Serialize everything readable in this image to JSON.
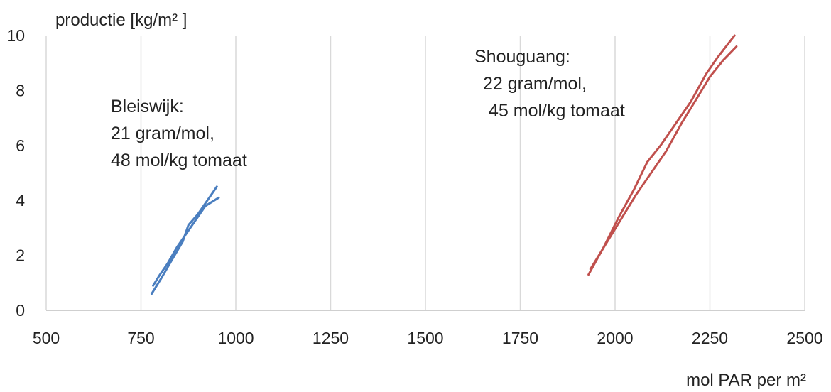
{
  "chart_data": {
    "type": "line",
    "ylabel": "productie [kg/m² ]",
    "xlabel": "mol PAR  per m²",
    "xlim": [
      500,
      2500
    ],
    "ylim": [
      0,
      10
    ],
    "x_ticks": [
      500,
      750,
      1000,
      1250,
      1500,
      1750,
      2000,
      2250,
      2500
    ],
    "y_ticks": [
      0,
      2,
      4,
      6,
      8,
      10
    ],
    "grid": "vertical",
    "series": [
      {
        "color": "#4a7ebf",
        "x": [
          778,
          805,
          830,
          860,
          875,
          900,
          925,
          950
        ],
        "y": [
          0.6,
          1.2,
          1.8,
          2.5,
          3.1,
          3.5,
          4.0,
          4.5
        ]
      },
      {
        "color": "#4a7ebf",
        "x": [
          782,
          800,
          820,
          845,
          870,
          895,
          920,
          955
        ],
        "y": [
          0.9,
          1.3,
          1.7,
          2.3,
          2.8,
          3.3,
          3.8,
          4.1
        ]
      },
      {
        "color": "#c0504d",
        "x": [
          1930,
          1970,
          2010,
          2050,
          2085,
          2120,
          2160,
          2200,
          2240,
          2270,
          2315
        ],
        "y": [
          1.3,
          2.3,
          3.4,
          4.4,
          5.4,
          6.0,
          6.8,
          7.6,
          8.6,
          9.2,
          10.0
        ]
      },
      {
        "color": "#c0504d",
        "x": [
          1935,
          1975,
          2015,
          2055,
          2095,
          2135,
          2175,
          2215,
          2250,
          2285,
          2320
        ],
        "y": [
          1.5,
          2.4,
          3.3,
          4.2,
          5.0,
          5.8,
          6.8,
          7.7,
          8.5,
          9.1,
          9.6
        ]
      }
    ],
    "annotations": [
      {
        "lines": [
          "Bleiswijk:",
          "21 gram/mol,",
          "48 mol/kg tomaat"
        ]
      },
      {
        "lines": [
          "Shouguang:",
          "22 gram/mol,",
          "45 mol/kg tomaat"
        ]
      }
    ]
  }
}
